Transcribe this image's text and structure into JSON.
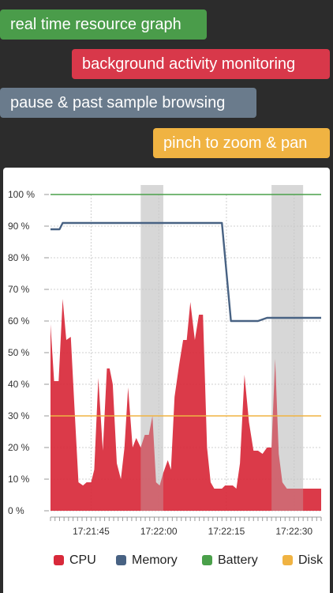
{
  "features": [
    {
      "label": "real time resource graph",
      "color": "#4a9c4a"
    },
    {
      "label": "background activity monitoring",
      "color": "#d8384a"
    },
    {
      "label": "pause & past sample browsing",
      "color": "#6a7b8c"
    },
    {
      "label": "pinch to zoom & pan",
      "color": "#f0b342"
    }
  ],
  "chart_data": {
    "type": "area",
    "ylim": [
      0,
      100
    ],
    "yticks": [
      "100 %",
      "90 %",
      "80 %",
      "70 %",
      "60 %",
      "50 %",
      "40 %",
      "30 %",
      "20 %",
      "10 %",
      "0 %"
    ],
    "xlim": [
      0,
      60
    ],
    "xticks": [
      {
        "t": 9,
        "label": "17:21:45"
      },
      {
        "t": 24,
        "label": "17:22:00"
      },
      {
        "t": 39,
        "label": "17:22:15"
      },
      {
        "t": 54,
        "label": "17:22:30"
      }
    ],
    "paused_ranges": [
      [
        20,
        25
      ],
      [
        49,
        56
      ]
    ],
    "grid": true,
    "legend_position": "bottom",
    "series": [
      {
        "name": "CPU",
        "color": "#d8293a",
        "x": [
          0,
          0.8,
          1.8,
          2.7,
          3.5,
          4.5,
          5.3,
          6.2,
          7.2,
          8.0,
          9.0,
          9.7,
          10.6,
          11.6,
          12.5,
          13.1,
          13.8,
          14.7,
          15.6,
          16.4,
          17.2,
          18.2,
          19.0,
          20.0,
          20.9,
          21.8,
          22.6,
          23.4,
          24.2,
          25.0,
          26.0,
          26.7,
          27.5,
          28.5,
          29.4,
          30.2,
          31.0,
          32.0,
          32.9,
          33.8,
          34.7,
          35.5,
          36.3,
          37.2,
          38.0,
          38.7,
          39.6,
          40.4,
          41.2,
          42.0,
          43.0,
          44.0,
          45.0,
          46.0,
          47.0,
          48.0,
          49.0,
          49.8,
          50.6,
          51.4,
          52.4,
          53.4,
          54.3,
          55.2,
          56.2,
          57.0,
          58.0,
          59.0,
          60.0
        ],
        "values": [
          59,
          41,
          41,
          67,
          54,
          55,
          33,
          9,
          8,
          9,
          9,
          13,
          42,
          19,
          45,
          45,
          40,
          15,
          10,
          20,
          39,
          20,
          23,
          20,
          24,
          24,
          30,
          9,
          8,
          12,
          16,
          13,
          36,
          46,
          54,
          54,
          66,
          54,
          62,
          62,
          20,
          9,
          7,
          7,
          7,
          8,
          8,
          8,
          7,
          15,
          43,
          28,
          19,
          19,
          18,
          20,
          20,
          48,
          18,
          9,
          7,
          7,
          7,
          7,
          7,
          7,
          7,
          7,
          7
        ]
      },
      {
        "name": "Memory",
        "color": "#486283",
        "x": [
          0,
          1,
          2,
          2.7,
          4,
          6,
          8,
          10,
          12,
          13,
          14,
          15,
          16,
          17,
          18,
          19,
          20,
          22,
          24,
          26,
          28,
          30,
          31,
          32,
          33,
          34,
          35,
          36,
          37,
          38,
          40,
          42,
          44,
          46,
          48,
          50,
          52,
          54,
          56,
          57,
          58,
          59,
          60
        ],
        "values": [
          89,
          89,
          89,
          91,
          91,
          91,
          91,
          91,
          91,
          91,
          91,
          91,
          91,
          91,
          91,
          91,
          91,
          91,
          91,
          91,
          91,
          91,
          91,
          91,
          91,
          91,
          91,
          91,
          91,
          91,
          60,
          60,
          60,
          60,
          61,
          61,
          61,
          61,
          61,
          61,
          61,
          61,
          61
        ]
      },
      {
        "name": "Battery",
        "color": "#4aa04a",
        "x": [
          0,
          60
        ],
        "values": [
          100,
          100
        ]
      },
      {
        "name": "Disk",
        "color": "#f0b342",
        "x": [
          0,
          60
        ],
        "values": [
          30,
          30
        ]
      }
    ]
  },
  "legend": [
    {
      "label": "CPU",
      "color": "#d8293a"
    },
    {
      "label": "Memory",
      "color": "#486283"
    },
    {
      "label": "Battery",
      "color": "#4aa04a"
    },
    {
      "label": "Disk",
      "color": "#f0b342"
    }
  ]
}
